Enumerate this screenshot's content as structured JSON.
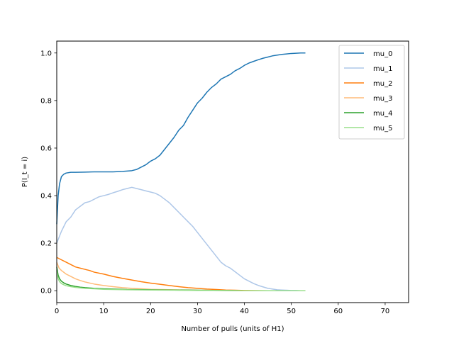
{
  "chart_data": {
    "type": "line",
    "title": "",
    "xlabel": "Number of pulls (units of H1)",
    "ylabel": "P(I_t = i)",
    "xlim": [
      0,
      75
    ],
    "ylim": [
      -0.05,
      1.05
    ],
    "xticks": [
      0,
      10,
      20,
      30,
      40,
      50,
      60,
      70
    ],
    "yticks": [
      0.0,
      0.2,
      0.4,
      0.6,
      0.8,
      1.0
    ],
    "grid": false,
    "legend_position": "top-right",
    "series": [
      {
        "name": "mu_0",
        "color": "#1f77b4",
        "x": [
          0,
          0.3,
          0.6,
          1,
          1.5,
          2,
          3,
          4,
          6,
          8,
          10,
          12,
          14,
          16,
          17,
          18,
          19,
          20,
          21,
          22,
          23,
          24,
          25,
          26,
          27,
          28,
          29,
          30,
          31,
          32,
          33,
          34,
          35,
          36,
          37,
          38,
          39,
          40,
          41,
          42,
          43,
          44,
          45,
          46,
          47,
          48,
          49,
          50,
          51,
          52,
          53
        ],
        "y": [
          0.28,
          0.4,
          0.45,
          0.48,
          0.49,
          0.495,
          0.498,
          0.498,
          0.499,
          0.5,
          0.5,
          0.5,
          0.502,
          0.505,
          0.51,
          0.52,
          0.53,
          0.545,
          0.555,
          0.57,
          0.595,
          0.62,
          0.645,
          0.675,
          0.695,
          0.73,
          0.76,
          0.79,
          0.81,
          0.835,
          0.855,
          0.87,
          0.89,
          0.9,
          0.91,
          0.925,
          0.935,
          0.948,
          0.958,
          0.965,
          0.972,
          0.978,
          0.983,
          0.988,
          0.991,
          0.994,
          0.996,
          0.998,
          0.999,
          1.0,
          1.0
        ]
      },
      {
        "name": "mu_1",
        "color": "#aec7e8",
        "x": [
          0,
          1,
          2,
          3,
          4,
          5,
          6,
          7,
          8,
          9,
          10,
          11,
          12,
          13,
          14,
          15,
          16,
          17,
          18,
          19,
          20,
          21,
          22,
          23,
          24,
          25,
          26,
          27,
          28,
          29,
          30,
          31,
          32,
          33,
          34,
          35,
          36,
          37,
          38,
          39,
          40,
          41,
          42,
          43,
          44,
          45,
          46,
          47,
          48,
          49,
          50,
          51,
          52,
          53
        ],
        "y": [
          0.2,
          0.25,
          0.29,
          0.31,
          0.34,
          0.355,
          0.37,
          0.375,
          0.385,
          0.395,
          0.4,
          0.405,
          0.412,
          0.418,
          0.425,
          0.43,
          0.435,
          0.43,
          0.425,
          0.42,
          0.415,
          0.41,
          0.4,
          0.385,
          0.37,
          0.35,
          0.33,
          0.31,
          0.29,
          0.27,
          0.245,
          0.22,
          0.195,
          0.17,
          0.145,
          0.12,
          0.105,
          0.095,
          0.08,
          0.065,
          0.05,
          0.04,
          0.03,
          0.022,
          0.016,
          0.01,
          0.007,
          0.004,
          0.003,
          0.002,
          0.001,
          0.001,
          0.0,
          0.0
        ]
      },
      {
        "name": "mu_2",
        "color": "#ff7f0e",
        "x": [
          0,
          1,
          2,
          3,
          4,
          5,
          6,
          7,
          8,
          10,
          12,
          14,
          16,
          18,
          20,
          22,
          24,
          26,
          28,
          30,
          32,
          34,
          36,
          38,
          40,
          45,
          50,
          53
        ],
        "y": [
          0.14,
          0.13,
          0.12,
          0.11,
          0.1,
          0.095,
          0.09,
          0.085,
          0.078,
          0.07,
          0.06,
          0.052,
          0.045,
          0.038,
          0.032,
          0.027,
          0.022,
          0.017,
          0.013,
          0.01,
          0.007,
          0.005,
          0.003,
          0.002,
          0.001,
          0.0,
          0.0,
          0.0
        ]
      },
      {
        "name": "mu_3",
        "color": "#ffbb78",
        "x": [
          0,
          0.5,
          1,
          2,
          3,
          4,
          5,
          6,
          8,
          10,
          12,
          14,
          16,
          18,
          20,
          25,
          30,
          35,
          40,
          45,
          50,
          53
        ],
        "y": [
          0.12,
          0.095,
          0.085,
          0.07,
          0.06,
          0.05,
          0.043,
          0.037,
          0.028,
          0.022,
          0.017,
          0.013,
          0.01,
          0.008,
          0.006,
          0.004,
          0.002,
          0.001,
          0.0,
          0.0,
          0.0,
          0.0
        ]
      },
      {
        "name": "mu_4",
        "color": "#2ca02c",
        "x": [
          0,
          0.3,
          0.6,
          1,
          1.5,
          2,
          3,
          4,
          5,
          6,
          8,
          10,
          12,
          15,
          20,
          25,
          30,
          35,
          40,
          45,
          50,
          53
        ],
        "y": [
          0.1,
          0.065,
          0.05,
          0.04,
          0.033,
          0.028,
          0.022,
          0.018,
          0.015,
          0.013,
          0.01,
          0.008,
          0.007,
          0.005,
          0.004,
          0.003,
          0.002,
          0.001,
          0.0,
          0.0,
          0.0,
          0.0
        ]
      },
      {
        "name": "mu_5",
        "color": "#98df8a",
        "x": [
          0,
          0.3,
          0.6,
          1,
          1.5,
          2,
          3,
          4,
          5,
          6,
          8,
          10,
          12,
          15,
          20,
          25,
          30,
          35,
          40,
          45,
          50,
          53
        ],
        "y": [
          0.085,
          0.05,
          0.038,
          0.03,
          0.025,
          0.021,
          0.017,
          0.014,
          0.012,
          0.01,
          0.008,
          0.006,
          0.005,
          0.004,
          0.003,
          0.002,
          0.001,
          0.001,
          0.0,
          0.0,
          0.0,
          0.0
        ]
      }
    ]
  }
}
